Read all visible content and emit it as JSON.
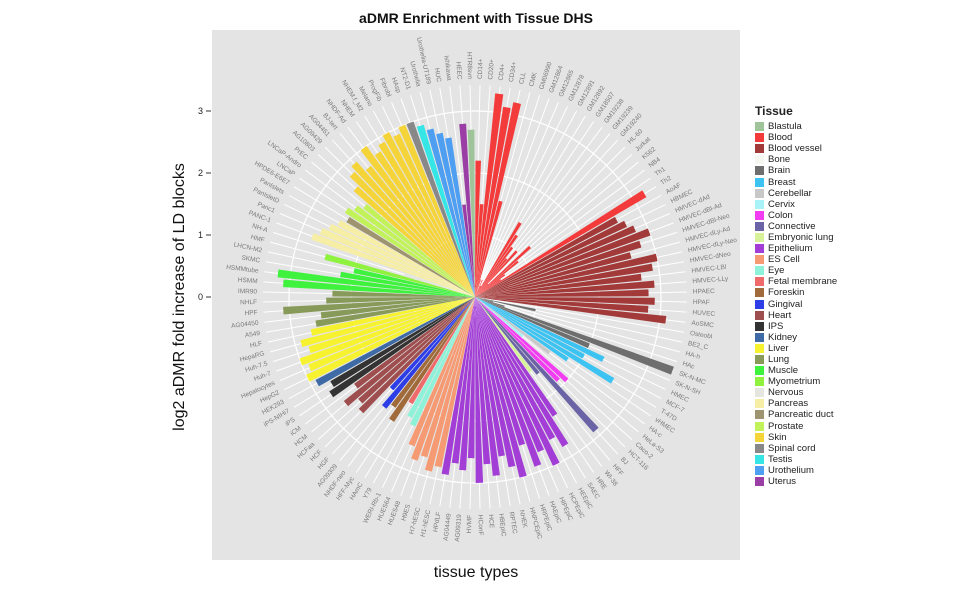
{
  "chart_data": {
    "type": "bar",
    "coord": "polar",
    "title": "aDMR Enrichment with Tissue DHS",
    "xlabel": "tissue types",
    "ylabel": "log2 aDMR fold increase of LD blocks",
    "yticks": [
      "0",
      "1",
      "2",
      "3"
    ],
    "ylim": [
      0,
      3.5
    ],
    "grid": true,
    "legend": {
      "title": "Tissue",
      "placement": "right"
    },
    "tissues": [
      {
        "name": "Blastula",
        "color": "#9fc49a"
      },
      {
        "name": "Blood",
        "color": "#f33b3b"
      },
      {
        "name": "Blood vessel",
        "color": "#a33a3a"
      },
      {
        "name": "Bone",
        "color": "#f7f7f2"
      },
      {
        "name": "Brain",
        "color": "#6e6e6e"
      },
      {
        "name": "Breast",
        "color": "#3cc3f2"
      },
      {
        "name": "Cerebellar",
        "color": "#c8c8c8"
      },
      {
        "name": "Cervix",
        "color": "#a9f2f7"
      },
      {
        "name": "Colon",
        "color": "#f23cf2"
      },
      {
        "name": "Connective",
        "color": "#6a64a6"
      },
      {
        "name": "Embryonic lung",
        "color": "#d8f29a"
      },
      {
        "name": "Epithelium",
        "color": "#a23ed6"
      },
      {
        "name": "ES Cell",
        "color": "#f59a72"
      },
      {
        "name": "Eye",
        "color": "#8ef2d8"
      },
      {
        "name": "Fetal membrane",
        "color": "#ef6a6a"
      },
      {
        "name": "Foreskin",
        "color": "#a06a3a"
      },
      {
        "name": "Gingival",
        "color": "#2e3ee6"
      },
      {
        "name": "Heart",
        "color": "#9e4e4e"
      },
      {
        "name": "IPS",
        "color": "#333333"
      },
      {
        "name": "Kidney",
        "color": "#3e6aa6"
      },
      {
        "name": "Liver",
        "color": "#f7f230"
      },
      {
        "name": "Lung",
        "color": "#889a5a"
      },
      {
        "name": "Muscle",
        "color": "#3ef23e"
      },
      {
        "name": "Myometrium",
        "color": "#8ef23e"
      },
      {
        "name": "Nervous",
        "color": "#e6e6e0"
      },
      {
        "name": "Pancreas",
        "color": "#f7eea6"
      },
      {
        "name": "Pancreatic duct",
        "color": "#9e9470"
      },
      {
        "name": "Prostate",
        "color": "#c2f25a"
      },
      {
        "name": "Skin",
        "color": "#f5d43a"
      },
      {
        "name": "Spinal cord",
        "color": "#888888"
      },
      {
        "name": "Testis",
        "color": "#36e6e6"
      },
      {
        "name": "Urothelium",
        "color": "#4e9ef2"
      },
      {
        "name": "Uterus",
        "color": "#9a3ea6"
      }
    ],
    "bars": [
      [
        "CD14+",
        "Blood",
        2.2
      ],
      [
        "CD20+",
        "Blood",
        1.5
      ],
      [
        "CD4+",
        "Blood",
        3.3
      ],
      [
        "CD34+",
        "Blood",
        3.1
      ],
      [
        "CLL",
        "Blood",
        3.2
      ],
      [
        "CMK",
        "Blood",
        1.6
      ],
      [
        "GM06990",
        "Blood",
        0.3
      ],
      [
        "GM12864",
        "Blood",
        0.1
      ],
      [
        "GM12865",
        "Blood",
        0.3
      ],
      [
        "GM12878",
        "Blood",
        0.2
      ],
      [
        "GM12891",
        "Blood",
        0.2
      ],
      [
        "GM12892",
        "Blood",
        1.4
      ],
      [
        "GM18507",
        "Blood",
        1.2
      ],
      [
        "GM19238",
        "Blood",
        1.0
      ],
      [
        "GM19239",
        "Blood",
        0.8
      ],
      [
        "GM19240",
        "Blood",
        1.0
      ],
      [
        "HL-60",
        "Blood",
        0.3
      ],
      [
        "Jurkat",
        "Blood",
        1.2
      ],
      [
        "K562",
        "Blood",
        0.9
      ],
      [
        "NB4",
        "Blood",
        0.6
      ],
      [
        "Th1",
        "Blood",
        0.5
      ],
      [
        "Th2",
        "Blood",
        3.2
      ],
      [
        "AoAF",
        "Blood vessel",
        2.6
      ],
      [
        "HBMEC",
        "Blood vessel",
        2.7
      ],
      [
        "HMVEC-dAd",
        "Blood vessel",
        2.8
      ],
      [
        "HMVEC-dBl-Ad",
        "Blood vessel",
        3.0
      ],
      [
        "HMVEC-dBl-Neo",
        "Blood vessel",
        2.8
      ],
      [
        "HMVEC-dLy-Ad",
        "Blood vessel",
        2.6
      ],
      [
        "HMVEC-dLy-Neo",
        "Blood vessel",
        3.0
      ],
      [
        "HMVEC-dNeo",
        "Blood vessel",
        2.9
      ],
      [
        "HMVEC-LBl",
        "Blood vessel",
        2.7
      ],
      [
        "HMVEC-LLy",
        "Blood vessel",
        2.9
      ],
      [
        "HPAEC",
        "Blood vessel",
        2.8
      ],
      [
        "HPAF",
        "Blood vessel",
        2.9
      ],
      [
        "HUVEC",
        "Blood vessel",
        2.8
      ],
      [
        "AoSMC",
        "Blood vessel",
        3.1
      ],
      [
        "Osteobl",
        "Bone",
        0.3
      ],
      [
        "BE2_C",
        "Brain",
        1.0
      ],
      [
        "HA-h",
        "Brain",
        0.3
      ],
      [
        "HAc",
        "Brain",
        0.5
      ],
      [
        "SK-N-MC",
        "Brain",
        3.4
      ],
      [
        "SK-N-SH",
        "Brain",
        2.0
      ],
      [
        "HMEC",
        "Breast",
        2.3
      ],
      [
        "MCF-7",
        "Breast",
        2.0
      ],
      [
        "T-47D",
        "Breast",
        2.6
      ],
      [
        "vHMEC",
        "Breast",
        1.8
      ],
      [
        "HA-c",
        "Cerebellar",
        1.5
      ],
      [
        "HeLa-S3",
        "Cervix",
        1.0
      ],
      [
        "Caco-2",
        "Colon",
        2.0
      ],
      [
        "HCT-116",
        "Colon",
        1.9
      ],
      [
        "BJ",
        "Connective",
        2.9
      ],
      [
        "HFF",
        "Connective",
        1.6
      ],
      [
        "WI-38",
        "Embryonic lung",
        1.5
      ],
      [
        "HRE",
        "Epithelium",
        2.3
      ],
      [
        "SAEC",
        "Epithelium",
        2.8
      ],
      [
        "HEEpiC",
        "Epithelium",
        2.6
      ],
      [
        "HCPEpiC",
        "Epithelium",
        3.0
      ],
      [
        "HIPEpiC",
        "Epithelium",
        2.7
      ],
      [
        "HAEpiC",
        "Epithelium",
        2.9
      ],
      [
        "HRPEpiC",
        "Epithelium",
        2.5
      ],
      [
        "HNPCEpiC",
        "Epithelium",
        3.0
      ],
      [
        "NHEK",
        "Epithelium",
        2.8
      ],
      [
        "RPTEC",
        "Epithelium",
        2.6
      ],
      [
        "HBEpiC",
        "Epithelium",
        2.9
      ],
      [
        "HCE",
        "Epithelium",
        2.7
      ],
      [
        "HConF",
        "Epithelium",
        3.0
      ],
      [
        "HVMF",
        "Epithelium",
        2.6
      ],
      [
        "AG09319",
        "Epithelium",
        2.8
      ],
      [
        "AG04449",
        "Epithelium",
        2.7
      ],
      [
        "HPdLF",
        "Epithelium",
        2.9
      ],
      [
        "H1-hESC",
        "ES Cell",
        2.8
      ],
      [
        "H7-hESC",
        "ES Cell",
        2.9
      ],
      [
        "H9ES",
        "ES Cell",
        2.7
      ],
      [
        "HUES48",
        "ES Cell",
        2.8
      ],
      [
        "HUES64",
        "ES Cell",
        2.6
      ],
      [
        "WERI-Rb-1",
        "Eye",
        2.3
      ],
      [
        "Y79",
        "Eye",
        2.2
      ],
      [
        "HAmC",
        "Fetal membrane",
        2.0
      ],
      [
        "HFF-Myc",
        "Foreskin",
        2.4
      ],
      [
        "NHDF-neo",
        "Foreskin",
        2.2
      ],
      [
        "AG09309",
        "Gingival",
        2.3
      ],
      [
        "HGF",
        "Gingival",
        2.0
      ],
      [
        "HCF",
        "Heart",
        2.6
      ],
      [
        "HCFaa",
        "Heart",
        2.5
      ],
      [
        "HCM",
        "Heart",
        2.7
      ],
      [
        "iCM",
        "Heart",
        2.4
      ],
      [
        "iPS",
        "IPS",
        2.8
      ],
      [
        "iPS-NIHi7",
        "IPS",
        2.7
      ],
      [
        "HEK293",
        "Kidney",
        2.9
      ],
      [
        "HepG2",
        "Liver",
        3.0
      ],
      [
        "Hepatocytes",
        "Liver",
        2.9
      ],
      [
        "Huh-7",
        "Liver",
        3.0
      ],
      [
        "Huh-7.5",
        "Liver",
        2.8
      ],
      [
        "HepaRG",
        "Liver",
        2.9
      ],
      [
        "HLF",
        "Liver",
        2.7
      ],
      [
        "A549",
        "Lung",
        2.6
      ],
      [
        "AG04450",
        "Lung",
        2.5
      ],
      [
        "HPF",
        "Lung",
        3.1
      ],
      [
        "NHLF",
        "Lung",
        2.4
      ],
      [
        "IMR90",
        "Lung",
        2.3
      ],
      [
        "HSMM",
        "Muscle",
        3.1
      ],
      [
        "HSMMtube",
        "Muscle",
        3.2
      ],
      [
        "SKMC",
        "Muscle",
        2.2
      ],
      [
        "LHCN-M2",
        "Muscle",
        2.0
      ],
      [
        "HMF",
        "Myometrium",
        2.5
      ],
      [
        "NH-A",
        "Nervous",
        1.2
      ],
      [
        "PANC-1",
        "Pancreas",
        2.8
      ],
      [
        "Panc1",
        "Pancreas",
        2.7
      ],
      [
        "PanIsletD",
        "Pancreas",
        2.6
      ],
      [
        "PanIslets",
        "Pancreas",
        2.5
      ],
      [
        "HPDE6-E6E7",
        "Pancreatic duct",
        2.4
      ],
      [
        "LNCaP",
        "Prostate",
        2.5
      ],
      [
        "LNCaP-Andro",
        "Prostate",
        2.4
      ],
      [
        "PrEC",
        "Prostate",
        2.3
      ],
      [
        "AG10803",
        "Skin",
        2.6
      ],
      [
        "AG09429",
        "Skin",
        2.8
      ],
      [
        "AG04451",
        "Skin",
        2.9
      ],
      [
        "BJ-tert",
        "Skin",
        2.7
      ],
      [
        "NHDF-Ad",
        "Skin",
        3.0
      ],
      [
        "NHEM",
        "Skin",
        2.8
      ],
      [
        "NHEM.f_M2",
        "Skin",
        2.9
      ],
      [
        "Melano",
        "Skin",
        3.0
      ],
      [
        "ProgFib",
        "Skin",
        2.9
      ],
      [
        "Fibrobl",
        "Skin",
        3.0
      ],
      [
        "HAsp",
        "Spinal cord",
        3.0
      ],
      [
        "NT2-D1",
        "Testis",
        2.9
      ],
      [
        "Urothelia",
        "Urothelium",
        2.8
      ],
      [
        "Urothelia-UT189",
        "Urothelium",
        2.7
      ],
      [
        "HUC",
        "Urothelium",
        2.6
      ],
      [
        "Ishikawa",
        "Uterus",
        1.5
      ],
      [
        "HEEC",
        "Uterus",
        2.8
      ],
      [
        "HTR8svn",
        "Blastula",
        2.7
      ]
    ]
  }
}
